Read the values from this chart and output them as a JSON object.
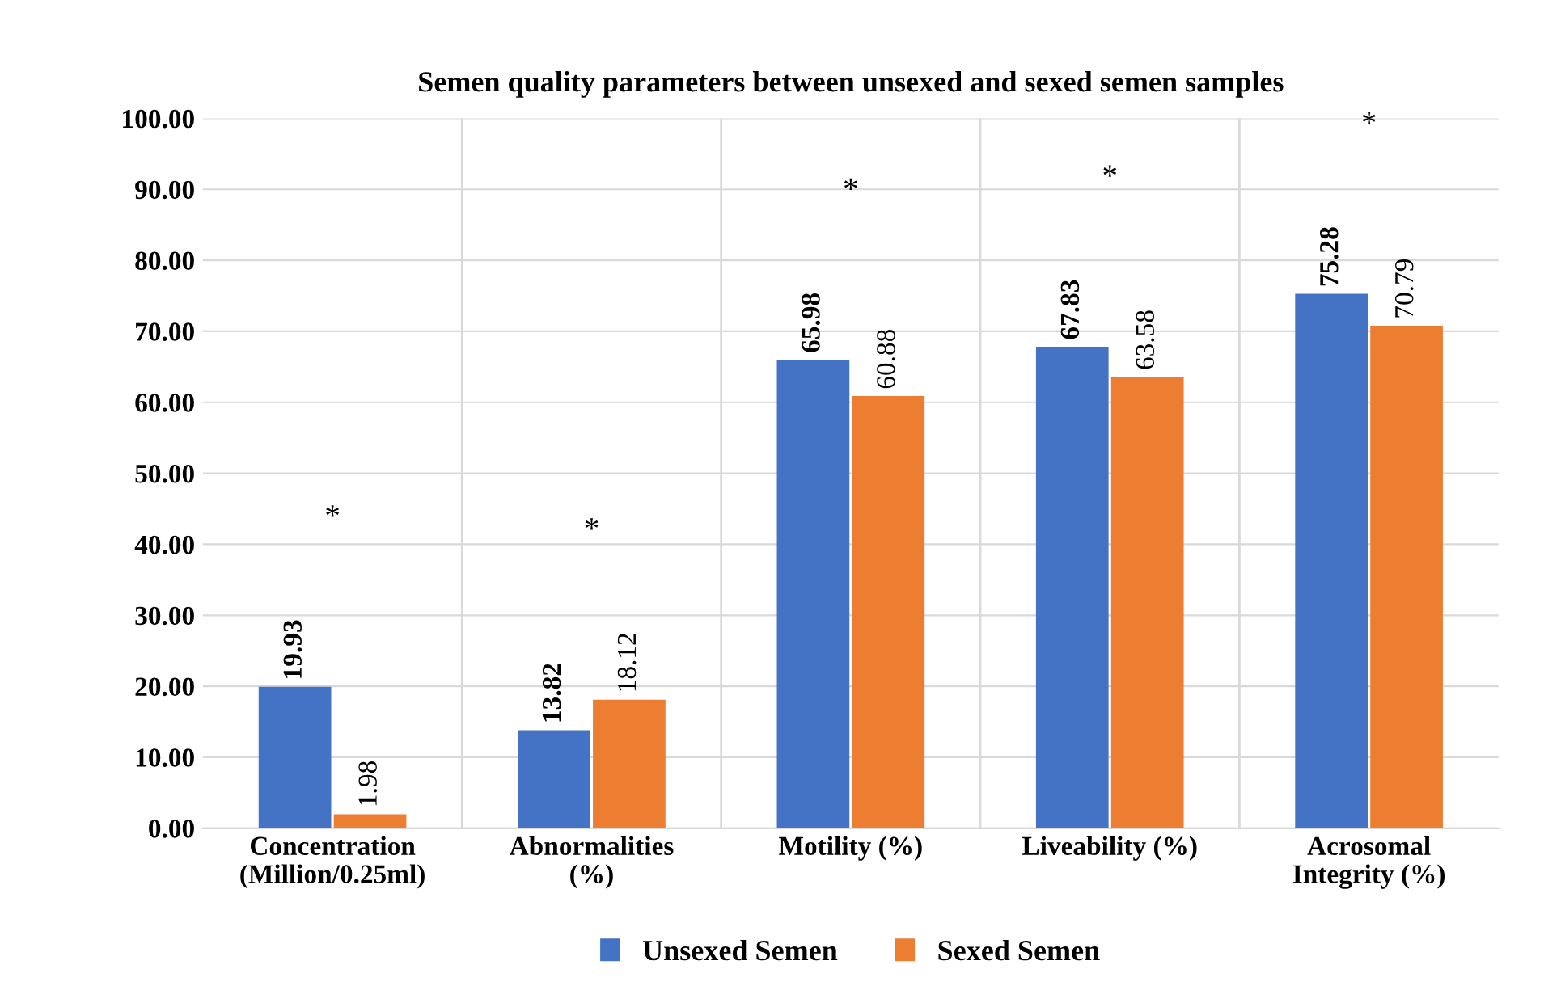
{
  "chart_data": {
    "type": "bar",
    "title": "Semen quality parameters between unsexed and sexed semen samples",
    "categories": [
      "Concentration\n(Million/0.25ml)",
      "Abnormalities\n(%)",
      "Motility (%)",
      "Liveability (%)",
      "Acrosomal\nIntegrity (%)"
    ],
    "series": [
      {
        "name": "Unsexed Semen",
        "color": "#4472c4",
        "values": [
          19.93,
          13.82,
          65.98,
          67.83,
          75.28
        ]
      },
      {
        "name": "Sexed Semen",
        "color": "#ed7d31",
        "values": [
          1.98,
          18.12,
          60.88,
          63.58,
          70.79
        ]
      }
    ],
    "ylim": [
      0,
      100
    ],
    "yticks": [
      {
        "value": 0,
        "label": "0.00"
      },
      {
        "value": 10,
        "label": "10.00"
      },
      {
        "value": 20,
        "label": "20.00"
      },
      {
        "value": 30,
        "label": "30.00"
      },
      {
        "value": 40,
        "label": "40.00"
      },
      {
        "value": 50,
        "label": "50.00"
      },
      {
        "value": 60,
        "label": "60.00"
      },
      {
        "value": 70,
        "label": "70.00"
      },
      {
        "value": 80,
        "label": "80.00"
      },
      {
        "value": 90,
        "label": "90.00"
      },
      {
        "value": 100,
        "label": "100.00"
      }
    ],
    "annotations": [
      "*",
      "*",
      "*",
      "*",
      "*"
    ],
    "data_labels": true,
    "grid": true,
    "legend": "bottom"
  }
}
